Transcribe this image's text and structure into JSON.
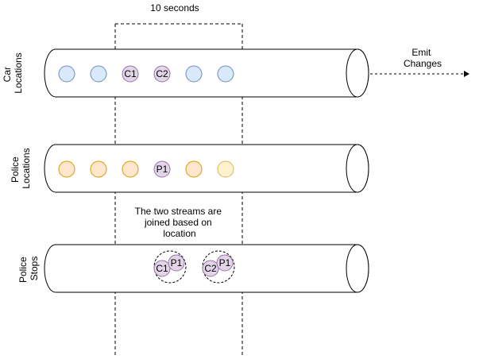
{
  "window_label": "10 seconds",
  "emit_label": [
    "Emit",
    "Changes"
  ],
  "caption": [
    "The two streams are",
    "joined based on",
    "location"
  ],
  "streams": {
    "car": {
      "label": [
        "Car",
        "Locations"
      ],
      "dots": [
        "",
        "",
        "C1",
        "C2",
        "",
        ""
      ]
    },
    "police": {
      "label": [
        "Police",
        "Locations"
      ],
      "dots": [
        "",
        "",
        "",
        "P1",
        "",
        ""
      ]
    },
    "stops": {
      "label": [
        "Police",
        "Stops"
      ]
    }
  },
  "joins": [
    {
      "car": "C1",
      "police": "P1"
    },
    {
      "car": "C2",
      "police": "P1"
    }
  ],
  "colors": {
    "blue_fill": "#dae8fc",
    "blue_stroke": "#6c8ebf",
    "purple_fill": "#e1d5e7",
    "purple_stroke": "#9673a6",
    "orange_fill": "#ffe6cc",
    "orange_stroke": "#d79b00",
    "light_orange_fill": "#fff2cc",
    "light_orange_stroke": "#d6b656"
  }
}
